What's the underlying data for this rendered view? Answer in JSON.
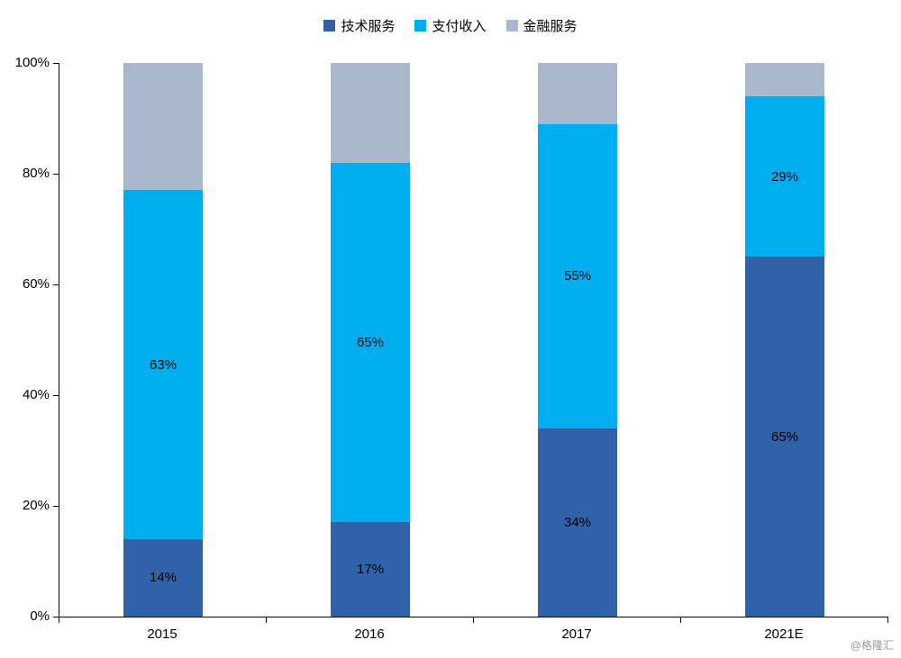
{
  "watermark": "@格隆汇",
  "chart_data": {
    "type": "bar",
    "stacked": true,
    "percent": true,
    "title": "",
    "xlabel": "",
    "ylabel": "",
    "ylim": [
      0,
      100
    ],
    "grid": false,
    "legend_position": "top",
    "categories": [
      "2015",
      "2016",
      "2017",
      "2021E"
    ],
    "yticks": [
      "0%",
      "20%",
      "40%",
      "60%",
      "80%",
      "100%"
    ],
    "series": [
      {
        "name": "技术服务",
        "color": "#3161A8",
        "values": [
          14,
          17,
          34,
          65
        ],
        "labels": [
          "14%",
          "17%",
          "34%",
          "65%"
        ]
      },
      {
        "name": "支付收入",
        "color": "#00AEEF",
        "values": [
          63,
          65,
          55,
          29
        ],
        "labels": [
          "63%",
          "65%",
          "55%",
          "29%"
        ]
      },
      {
        "name": "金融服务",
        "color": "#A9B7CD",
        "values": [
          23,
          18,
          11,
          6
        ],
        "labels": [
          "",
          "",
          "",
          ""
        ]
      }
    ]
  }
}
